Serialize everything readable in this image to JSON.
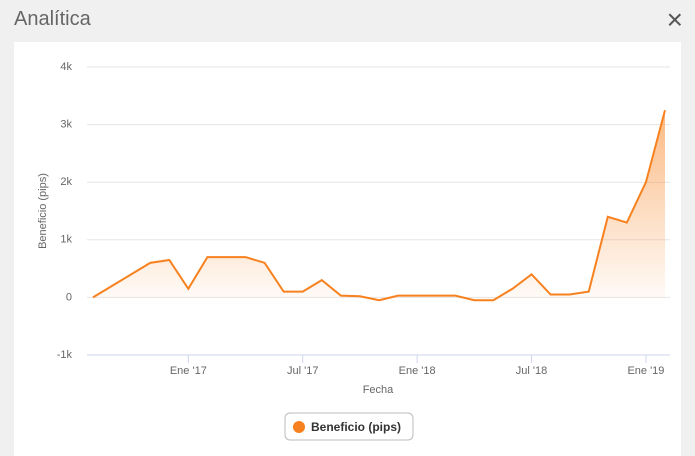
{
  "header": {
    "title": "Analítica",
    "close": "×"
  },
  "chart_data": {
    "type": "line",
    "x_label": "Fecha",
    "y_label": "Beneficio (pips)",
    "x": [
      "2016-08",
      "2016-09",
      "2016-10",
      "2016-11",
      "2016-12",
      "2017-01",
      "2017-02",
      "2017-03",
      "2017-04",
      "2017-05",
      "2017-06",
      "2017-07",
      "2017-08",
      "2017-09",
      "2017-10",
      "2017-11",
      "2017-12",
      "2018-01",
      "2018-02",
      "2018-03",
      "2018-04",
      "2018-05",
      "2018-06",
      "2018-07",
      "2018-08",
      "2018-09",
      "2018-10",
      "2018-11",
      "2018-12",
      "2019-01",
      "2019-02"
    ],
    "series": [
      {
        "name": "Beneficio (pips)",
        "color": "#f7811e",
        "values": [
          0,
          200,
          400,
          600,
          650,
          150,
          700,
          700,
          700,
          600,
          100,
          100,
          300,
          30,
          20,
          -50,
          30,
          30,
          30,
          30,
          -50,
          -50,
          150,
          400,
          50,
          50,
          100,
          1400,
          1300,
          2000,
          3250
        ]
      }
    ],
    "xlim": [
      "2016-08",
      "2019-02"
    ],
    "xticks": [
      {
        "value": "2017-01",
        "label": "Ene '17"
      },
      {
        "value": "2017-07",
        "label": "Jul '17"
      },
      {
        "value": "2018-01",
        "label": "Ene '18"
      },
      {
        "value": "2018-07",
        "label": "Jul '18"
      },
      {
        "value": "2019-01",
        "label": "Ene '19"
      }
    ],
    "ylim": [
      -1000,
      4000
    ],
    "yticks": [
      {
        "value": -1000,
        "label": "-1k"
      },
      0,
      {
        "value": 1000,
        "label": "1k"
      },
      {
        "value": 2000,
        "label": "2k"
      },
      {
        "value": 3000,
        "label": "3k"
      },
      {
        "value": 4000,
        "label": "4k"
      }
    ],
    "grid": true,
    "legend": "bottom"
  }
}
